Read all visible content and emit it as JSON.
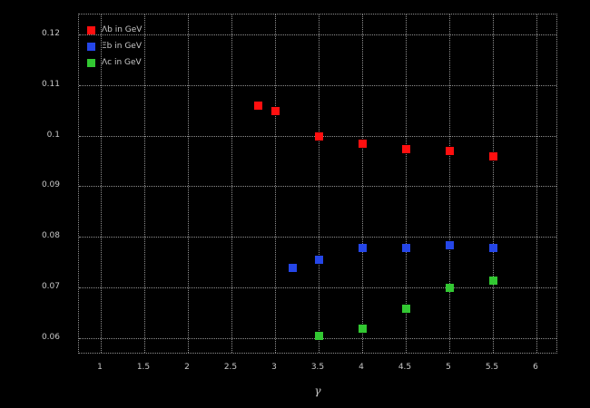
{
  "colors": {
    "background": "#000000",
    "grid": "#8f8f8f",
    "text": "#c8c8c8",
    "series_red": "#ff0f0f",
    "series_blue": "#2546e8",
    "series_green": "#32c832"
  },
  "chart_data": {
    "type": "scatter",
    "title": "",
    "xlabel": "γ",
    "ylabel": "",
    "marker": "square",
    "grid": "dotted",
    "legend_position": "top-left",
    "xlim": [
      0.75,
      6.25
    ],
    "ylim": [
      0.0568,
      0.1239
    ],
    "x_ticks": [
      1,
      1.5,
      2,
      2.5,
      3,
      3.5,
      4,
      4.5,
      5,
      5.5,
      6
    ],
    "x_tick_labels": [
      "1",
      "1.5",
      "2",
      "2.5",
      "3",
      "3.5",
      "4",
      "4.5",
      "5",
      "5.5",
      "6"
    ],
    "y_ticks": [
      0.12,
      0.11,
      0.1,
      0.09,
      0.08,
      0.07,
      0.06
    ],
    "y_tick_labels": [
      "0.12",
      "0.11",
      "0.1",
      "0.09",
      "0.08",
      "0.07",
      "0.06"
    ],
    "series": [
      {
        "name": "Λb in GeV",
        "color": "#ff0f0f",
        "marker": "square",
        "points": [
          [
            2.8,
            0.106
          ],
          [
            3.0,
            0.105
          ],
          [
            3.5,
            0.1
          ],
          [
            4.0,
            0.0985
          ],
          [
            4.5,
            0.0975
          ],
          [
            5.0,
            0.097
          ],
          [
            5.5,
            0.096
          ]
        ]
      },
      {
        "name": "Ξb in GeV",
        "color": "#2546e8",
        "marker": "square",
        "points": [
          [
            3.2,
            0.074
          ],
          [
            3.5,
            0.0755
          ],
          [
            4.0,
            0.078
          ],
          [
            4.5,
            0.078
          ],
          [
            5.0,
            0.0785
          ],
          [
            5.5,
            0.078
          ]
        ]
      },
      {
        "name": "Λc in GeV",
        "color": "#32c832",
        "marker": "square",
        "points": [
          [
            3.5,
            0.0605
          ],
          [
            4.0,
            0.062
          ],
          [
            4.5,
            0.066
          ],
          [
            5.0,
            0.07
          ],
          [
            5.5,
            0.0715
          ]
        ]
      }
    ]
  }
}
